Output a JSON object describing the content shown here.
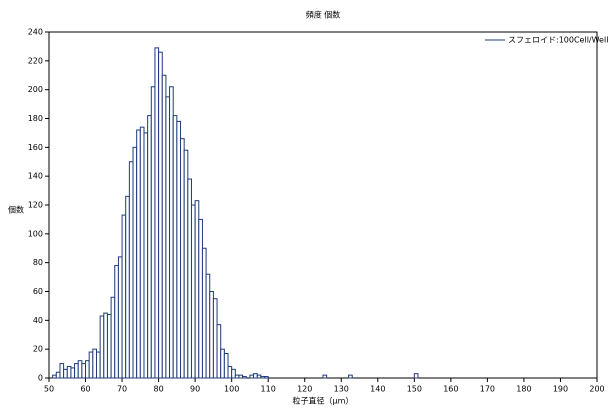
{
  "chart_data": {
    "type": "histogram",
    "title": "頻度 個数",
    "x_label": "粒子直径（μm）",
    "y_label": "個数",
    "bins": [
      51,
      52,
      53,
      54,
      55,
      56,
      57,
      58,
      59,
      60,
      61,
      62,
      63,
      64,
      65,
      66,
      67,
      68,
      69,
      70,
      71,
      72,
      73,
      74,
      75,
      76,
      77,
      78,
      79,
      80,
      81,
      82,
      83,
      84,
      85,
      86,
      87,
      88,
      89,
      90,
      91,
      92,
      93,
      94,
      95,
      96,
      97,
      98,
      99,
      100,
      101,
      102,
      103,
      104,
      105,
      106,
      107,
      108,
      109,
      110,
      111,
      112,
      113,
      114,
      115,
      116,
      117,
      118,
      119,
      120,
      121,
      122,
      123,
      124,
      125,
      126,
      127,
      128,
      129,
      130,
      131,
      132,
      133,
      134,
      135,
      136,
      137,
      138,
      139,
      140,
      141,
      142,
      143,
      144,
      145,
      146,
      147,
      148,
      149,
      150,
      151
    ],
    "series": [
      {
        "name": "スフェロイド:100Cell/Well",
        "color": "#1f3a7a",
        "counts": [
          2,
          4,
          10,
          6,
          8,
          7,
          10,
          12,
          10,
          12,
          18,
          20,
          18,
          43,
          45,
          44,
          56,
          78,
          84,
          113,
          126,
          150,
          160,
          172,
          174,
          170,
          182,
          202,
          229,
          226,
          210,
          195,
          202,
          182,
          178,
          166,
          158,
          138,
          120,
          123,
          110,
          90,
          72,
          60,
          55,
          37,
          20,
          17,
          8,
          6,
          2,
          2,
          1,
          0,
          2,
          3,
          2,
          1,
          1,
          0,
          0,
          0,
          0,
          0,
          0,
          0,
          0,
          0,
          0,
          0,
          0,
          0,
          0,
          0,
          2,
          0,
          0,
          0,
          0,
          0,
          0,
          2,
          0,
          0,
          0,
          0,
          0,
          0,
          0,
          0,
          0,
          0,
          0,
          0,
          0,
          0,
          0,
          0,
          0,
          3
        ]
      }
    ],
    "xlim": [
      50,
      200
    ],
    "ylim": [
      0,
      240
    ],
    "xticks": [
      50,
      60,
      70,
      80,
      90,
      100,
      110,
      120,
      130,
      140,
      150,
      160,
      170,
      180,
      190,
      200
    ],
    "yticks": [
      0,
      20,
      40,
      60,
      80,
      100,
      120,
      140,
      160,
      180,
      200,
      220,
      240
    ],
    "legend": "upper right"
  }
}
